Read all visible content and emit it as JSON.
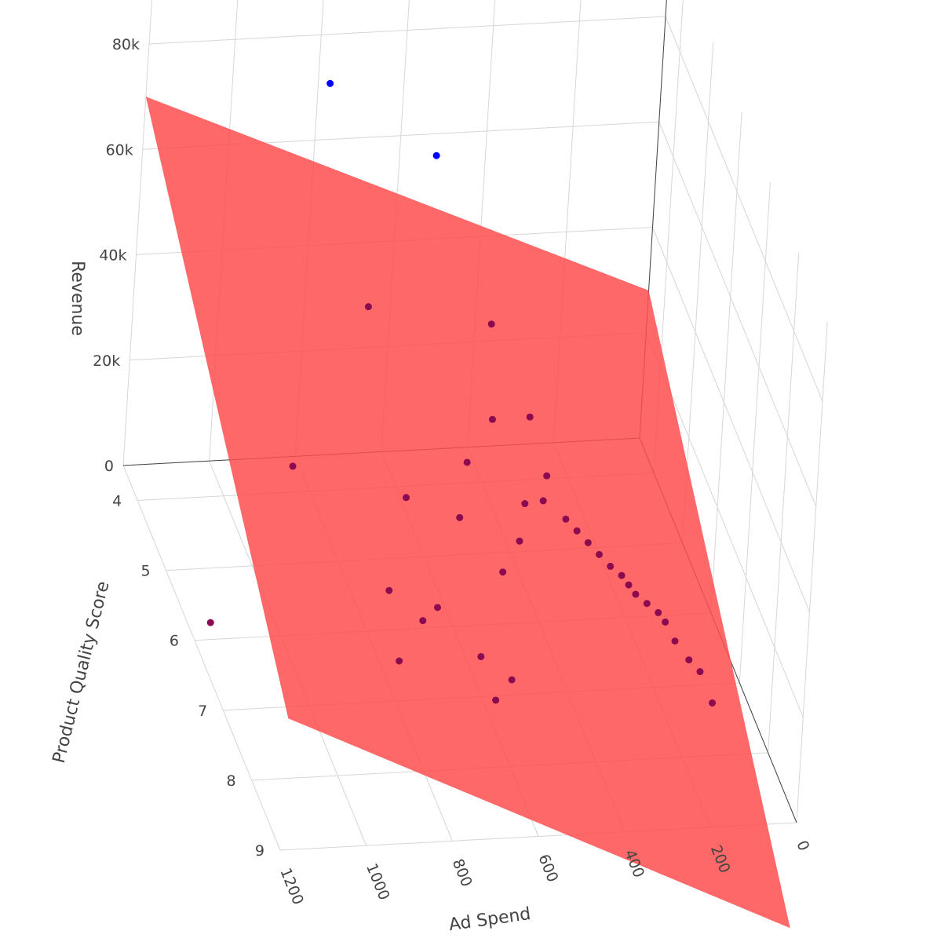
{
  "chart_data": {
    "type": "scatter",
    "subtype": "3d-scatter-with-regression-plane",
    "title": "",
    "colors": {
      "points": "#0000ff",
      "points_below_plane": "#8b0a50",
      "plane": "#ff4d4d",
      "grid": "#d6d6d6",
      "axis": "#444444"
    },
    "axes": {
      "x": {
        "title": "Ad Spend",
        "ticks": [
          {
            "value": 0,
            "label": "0"
          },
          {
            "value": 200,
            "label": "200"
          },
          {
            "value": 400,
            "label": "400"
          },
          {
            "value": 600,
            "label": "600"
          },
          {
            "value": 800,
            "label": "800"
          },
          {
            "value": 1000,
            "label": "1000"
          },
          {
            "value": 1200,
            "label": "1200"
          }
        ],
        "range": [
          0,
          1200
        ]
      },
      "y": {
        "title": "Product Quality Score",
        "ticks": [
          {
            "value": 4,
            "label": "4"
          },
          {
            "value": 5,
            "label": "5"
          },
          {
            "value": 6,
            "label": "6"
          },
          {
            "value": 7,
            "label": "7"
          },
          {
            "value": 8,
            "label": "8"
          },
          {
            "value": 9,
            "label": "9"
          }
        ],
        "range": [
          3.5,
          9
        ]
      },
      "z": {
        "title": "Revenue",
        "ticks": [
          {
            "value": 0,
            "label": "0"
          },
          {
            "value": 20000,
            "label": "20k"
          },
          {
            "value": 40000,
            "label": "40k"
          },
          {
            "value": 60000,
            "label": "60k"
          },
          {
            "value": 80000,
            "label": "80k"
          }
        ],
        "range": [
          0,
          80000
        ]
      }
    },
    "grid": true,
    "legend": "none",
    "plane": {
      "description": "fitted regression surface",
      "corners": [
        {
          "ad_spend": 0,
          "quality": 3.5,
          "revenue": 28000
        },
        {
          "ad_spend": 0,
          "quality": 9,
          "revenue": -20000
        },
        {
          "ad_spend": 1200,
          "quality": 9,
          "revenue": 25000
        },
        {
          "ad_spend": 1200,
          "quality": 3.5,
          "revenue": 70000
        }
      ]
    },
    "series": [
      {
        "points_screen_estimate_note": "",
        "points": [
          {
            "ad_spend": 780,
            "quality": 3.6,
            "revenue": 72000
          },
          {
            "ad_spend": 560,
            "quality": 4.1,
            "revenue": 64000
          },
          {
            "ad_spend": 720,
            "quality": 4.4,
            "revenue": 40000
          },
          {
            "ad_spend": 400,
            "quality": 4.0,
            "revenue": 30000
          },
          {
            "ad_spend": 430,
            "quality": 4.6,
            "revenue": 20000
          },
          {
            "ad_spend": 1150,
            "quality": 5.8,
            "revenue": 500
          },
          {
            "ad_spend": 950,
            "quality": 5.4,
            "revenue": 24000
          },
          {
            "ad_spend": 320,
            "quality": 4.3,
            "revenue": 16000
          },
          {
            "ad_spend": 620,
            "quality": 4.6,
            "revenue": 6000
          },
          {
            "ad_spend": 460,
            "quality": 4.3,
            "revenue": 8000
          },
          {
            "ad_spend": 500,
            "quality": 4.7,
            "revenue": 3000
          },
          {
            "ad_spend": 700,
            "quality": 5.3,
            "revenue": -2000
          },
          {
            "ad_spend": 640,
            "quality": 5.6,
            "revenue": -4000
          },
          {
            "ad_spend": 600,
            "quality": 5.5,
            "revenue": -3000
          },
          {
            "ad_spend": 720,
            "quality": 6.0,
            "revenue": -6000
          },
          {
            "ad_spend": 530,
            "quality": 6.0,
            "revenue": -6000
          },
          {
            "ad_spend": 470,
            "quality": 6.2,
            "revenue": -8000
          },
          {
            "ad_spend": 520,
            "quality": 6.4,
            "revenue": -9000
          },
          {
            "ad_spend": 430,
            "quality": 5.2,
            "revenue": -1000
          },
          {
            "ad_spend": 380,
            "quality": 5.0,
            "revenue": 2000
          },
          {
            "ad_spend": 350,
            "quality": 4.7,
            "revenue": 5000
          },
          {
            "ad_spend": 300,
            "quality": 4.6,
            "revenue": 4000
          },
          {
            "ad_spend": 280,
            "quality": 4.4,
            "revenue": 6000
          },
          {
            "ad_spend": 260,
            "quality": 4.8,
            "revenue": 3000
          },
          {
            "ad_spend": 240,
            "quality": 4.9,
            "revenue": 2000
          },
          {
            "ad_spend": 220,
            "quality": 5.0,
            "revenue": 1000
          },
          {
            "ad_spend": 200,
            "quality": 5.1,
            "revenue": 0
          },
          {
            "ad_spend": 180,
            "quality": 5.2,
            "revenue": -1000
          },
          {
            "ad_spend": 160,
            "quality": 5.3,
            "revenue": -1500
          },
          {
            "ad_spend": 150,
            "quality": 5.4,
            "revenue": -2000
          },
          {
            "ad_spend": 140,
            "quality": 5.5,
            "revenue": -2500
          },
          {
            "ad_spend": 120,
            "quality": 5.6,
            "revenue": -3000
          },
          {
            "ad_spend": 100,
            "quality": 5.7,
            "revenue": -3500
          },
          {
            "ad_spend": 90,
            "quality": 5.8,
            "revenue": -4000
          },
          {
            "ad_spend": 80,
            "quality": 6.0,
            "revenue": -5000
          },
          {
            "ad_spend": 60,
            "quality": 6.2,
            "revenue": -6000
          },
          {
            "ad_spend": 40,
            "quality": 6.3,
            "revenue": -7000
          },
          {
            "ad_spend": 30,
            "quality": 6.6,
            "revenue": -9000
          }
        ]
      }
    ]
  }
}
